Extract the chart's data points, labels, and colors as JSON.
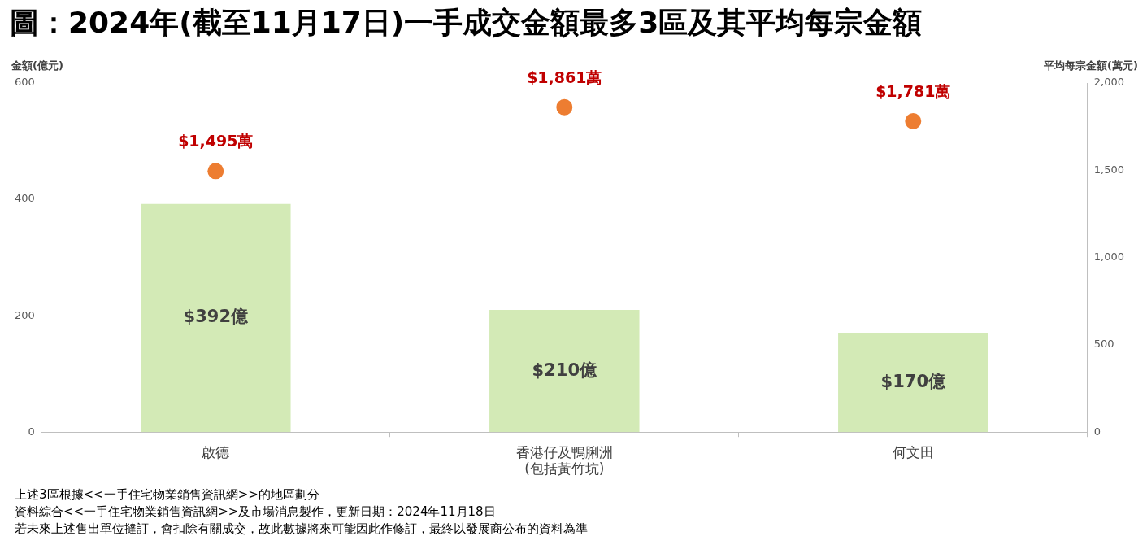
{
  "chart_data": {
    "type": "bar",
    "title": "圖：2024年(截至11月17日)一手成交金額最多3區及其平均每宗金額",
    "ylabel": "金額(億元)",
    "y2label": "平均每宗金額(萬元)",
    "categories": [
      "啟德",
      "香港仔及鴨脷洲\n(包括黃竹坑)",
      "何文田"
    ],
    "series": [
      {
        "color": "#d3eab6",
        "values": [
          392,
          210,
          170
        ],
        "value_labels": [
          "$392億",
          "$210億",
          "$170億"
        ]
      },
      {
        "type": "scatter",
        "axis": "y2",
        "color": "#ed7d31",
        "x": [
          "啟德",
          "香港仔及鴨脷洲\n(包括黃竹坑)",
          "何文田"
        ],
        "values": [
          1495,
          1861,
          1781
        ],
        "value_labels": [
          "$1,495萬",
          "$1,861萬",
          "$1,781萬"
        ]
      }
    ],
    "ylim": [
      0,
      600
    ],
    "yticks": [
      0,
      200,
      400,
      600
    ],
    "y2lim": [
      0,
      2000
    ],
    "y2ticks": [
      0,
      500,
      {
        "value": 1000,
        "label": "1,000"
      },
      {
        "value": 1500,
        "label": "1,500"
      },
      {
        "value": 2000,
        "label": "2,000"
      }
    ],
    "marker": "circle",
    "annotations": [
      "上述3區根據<<一手住宅物業銷售資訊網>>的地區劃分",
      "資料綜合<<一手住宅物業銷售資訊網>>及市場消息製作，更新日期：2024年11月18日",
      "若未來上述售出單位撻訂，會扣除有關成交，故此數據將來可能因此作修訂，最終以發展商公布的資料為準"
    ]
  }
}
